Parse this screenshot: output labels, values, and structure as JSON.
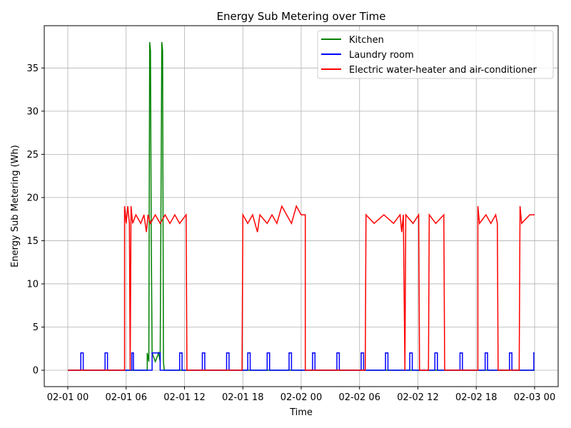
{
  "chart_data": {
    "type": "line",
    "title": "Energy Sub Metering over Time",
    "xlabel": "Time",
    "ylabel": "Energy Sub Metering (Wh)",
    "xlim": [
      "2007-02-01 00:00",
      "2007-02-03 00:00"
    ],
    "ylim": [
      -1.9,
      39.9
    ],
    "x_ticks": [
      "02-01 00",
      "02-01 06",
      "02-01 12",
      "02-01 18",
      "02-02 00",
      "02-02 06",
      "02-02 12",
      "02-02 18",
      "02-03 00"
    ],
    "y_ticks": [
      0,
      5,
      10,
      15,
      20,
      25,
      30,
      35
    ],
    "grid": true,
    "legend_position": "top-right",
    "series": [
      {
        "name": "Kitchen",
        "color": "#008000",
        "points": [
          [
            "02-01 00:00",
            0
          ],
          [
            "02-01 08:10",
            0
          ],
          [
            "02-01 08:10",
            2
          ],
          [
            "02-01 08:20",
            1
          ],
          [
            "02-01 08:25",
            38
          ],
          [
            "02-01 08:30",
            37
          ],
          [
            "02-01 08:35",
            16
          ],
          [
            "02-01 08:40",
            2
          ],
          [
            "02-01 09:00",
            1
          ],
          [
            "02-01 09:20",
            2
          ],
          [
            "02-01 09:30",
            1
          ],
          [
            "02-01 09:40",
            38
          ],
          [
            "02-01 09:45",
            37
          ],
          [
            "02-01 09:50",
            1
          ],
          [
            "02-01 09:55",
            0
          ],
          [
            "02-03 00:00",
            0
          ]
        ]
      },
      {
        "name": "Laundry room",
        "color": "#0000ff",
        "points": [
          [
            "02-01 00:00",
            0
          ],
          [
            "02-01 01:20",
            0
          ],
          [
            "02-01 01:20",
            2
          ],
          [
            "02-01 01:35",
            2
          ],
          [
            "02-01 01:35",
            0
          ],
          [
            "02-01 03:50",
            0
          ],
          [
            "02-01 03:50",
            2
          ],
          [
            "02-01 04:05",
            2
          ],
          [
            "02-01 04:05",
            0
          ],
          [
            "02-01 06:35",
            0
          ],
          [
            "02-01 06:35",
            2
          ],
          [
            "02-01 06:45",
            2
          ],
          [
            "02-01 06:45",
            0
          ],
          [
            "02-01 08:40",
            0
          ],
          [
            "02-01 08:40",
            2
          ],
          [
            "02-01 09:30",
            2
          ],
          [
            "02-01 09:30",
            0
          ],
          [
            "02-01 11:30",
            0
          ],
          [
            "02-01 11:30",
            2
          ],
          [
            "02-01 11:45",
            2
          ],
          [
            "02-01 11:45",
            0
          ],
          [
            "02-01 13:50",
            0
          ],
          [
            "02-01 13:50",
            2
          ],
          [
            "02-01 14:05",
            2
          ],
          [
            "02-01 14:05",
            0
          ],
          [
            "02-01 16:20",
            0
          ],
          [
            "02-01 16:20",
            2
          ],
          [
            "02-01 16:35",
            2
          ],
          [
            "02-01 16:35",
            0
          ],
          [
            "02-01 18:30",
            0
          ],
          [
            "02-01 18:30",
            2
          ],
          [
            "02-01 18:45",
            2
          ],
          [
            "02-01 18:45",
            0
          ],
          [
            "02-01 20:30",
            0
          ],
          [
            "02-01 20:30",
            2
          ],
          [
            "02-01 20:45",
            2
          ],
          [
            "02-01 20:45",
            0
          ],
          [
            "02-01 22:45",
            0
          ],
          [
            "02-01 22:45",
            2
          ],
          [
            "02-01 23:00",
            2
          ],
          [
            "02-01 23:00",
            0
          ],
          [
            "02-02 01:10",
            0
          ],
          [
            "02-02 01:10",
            2
          ],
          [
            "02-02 01:25",
            2
          ],
          [
            "02-02 01:25",
            0
          ],
          [
            "02-02 03:40",
            0
          ],
          [
            "02-02 03:40",
            2
          ],
          [
            "02-02 03:55",
            2
          ],
          [
            "02-02 03:55",
            0
          ],
          [
            "02-02 06:10",
            0
          ],
          [
            "02-02 06:10",
            2
          ],
          [
            "02-02 06:25",
            2
          ],
          [
            "02-02 06:25",
            0
          ],
          [
            "02-02 08:40",
            0
          ],
          [
            "02-02 08:40",
            2
          ],
          [
            "02-02 08:55",
            2
          ],
          [
            "02-02 08:55",
            0
          ],
          [
            "02-02 11:10",
            0
          ],
          [
            "02-02 11:10",
            2
          ],
          [
            "02-02 11:25",
            2
          ],
          [
            "02-02 11:25",
            0
          ],
          [
            "02-02 13:45",
            0
          ],
          [
            "02-02 13:45",
            2
          ],
          [
            "02-02 14:00",
            2
          ],
          [
            "02-02 14:00",
            0
          ],
          [
            "02-02 16:20",
            0
          ],
          [
            "02-02 16:20",
            2
          ],
          [
            "02-02 16:35",
            2
          ],
          [
            "02-02 16:35",
            0
          ],
          [
            "02-02 18:55",
            0
          ],
          [
            "02-02 18:55",
            2
          ],
          [
            "02-02 19:10",
            2
          ],
          [
            "02-02 19:10",
            0
          ],
          [
            "02-02 21:25",
            0
          ],
          [
            "02-02 21:25",
            2
          ],
          [
            "02-02 21:40",
            2
          ],
          [
            "02-02 21:40",
            0
          ],
          [
            "02-02 23:55",
            0
          ],
          [
            "02-02 23:55",
            2
          ],
          [
            "02-03 00:00",
            2
          ]
        ]
      },
      {
        "name": "Electric water-heater and air-conditioner",
        "color": "#ff0000",
        "points": [
          [
            "02-01 00:00",
            0
          ],
          [
            "02-01 05:50",
            0
          ],
          [
            "02-01 05:50",
            19
          ],
          [
            "02-01 06:00",
            17
          ],
          [
            "02-01 06:10",
            19
          ],
          [
            "02-01 06:20",
            17
          ],
          [
            "02-01 06:25",
            0
          ],
          [
            "02-01 06:30",
            19
          ],
          [
            "02-01 06:40",
            17
          ],
          [
            "02-01 07:00",
            18
          ],
          [
            "02-01 07:30",
            17
          ],
          [
            "02-01 07:50",
            18
          ],
          [
            "02-01 08:05",
            16
          ],
          [
            "02-01 08:15",
            18
          ],
          [
            "02-01 08:30",
            17
          ],
          [
            "02-01 09:00",
            18
          ],
          [
            "02-01 09:30",
            17
          ],
          [
            "02-01 10:00",
            18
          ],
          [
            "02-01 10:30",
            17
          ],
          [
            "02-01 11:00",
            18
          ],
          [
            "02-01 11:30",
            17
          ],
          [
            "02-01 12:10",
            18
          ],
          [
            "02-01 12:15",
            0
          ],
          [
            "02-01 17:55",
            0
          ],
          [
            "02-01 18:00",
            18
          ],
          [
            "02-01 18:30",
            17
          ],
          [
            "02-01 19:00",
            18
          ],
          [
            "02-01 19:30",
            16
          ],
          [
            "02-01 19:45",
            18
          ],
          [
            "02-01 20:30",
            17
          ],
          [
            "02-01 21:00",
            18
          ],
          [
            "02-01 21:30",
            17
          ],
          [
            "02-01 22:00",
            19
          ],
          [
            "02-01 22:30",
            18
          ],
          [
            "02-01 23:00",
            17
          ],
          [
            "02-01 23:30",
            19
          ],
          [
            "02-02 00:00",
            18
          ],
          [
            "02-02 00:25",
            18
          ],
          [
            "02-02 00:25",
            0
          ],
          [
            "02-02 06:35",
            0
          ],
          [
            "02-02 06:40",
            18
          ],
          [
            "02-02 07:30",
            17
          ],
          [
            "02-02 08:30",
            18
          ],
          [
            "02-02 09:30",
            17
          ],
          [
            "02-02 10:10",
            18
          ],
          [
            "02-02 10:20",
            16
          ],
          [
            "02-02 10:30",
            18
          ],
          [
            "02-02 10:40",
            0
          ],
          [
            "02-02 10:45",
            18
          ],
          [
            "02-02 11:30",
            17
          ],
          [
            "02-02 12:05",
            18
          ],
          [
            "02-02 12:10",
            0
          ],
          [
            "02-02 13:05",
            0
          ],
          [
            "02-02 13:10",
            18
          ],
          [
            "02-02 13:50",
            17
          ],
          [
            "02-02 14:40",
            18
          ],
          [
            "02-02 14:45",
            0
          ],
          [
            "02-02 18:10",
            0
          ],
          [
            "02-02 18:10",
            19
          ],
          [
            "02-02 18:20",
            17
          ],
          [
            "02-02 19:00",
            18
          ],
          [
            "02-02 19:30",
            17
          ],
          [
            "02-02 20:00",
            18
          ],
          [
            "02-02 20:10",
            17
          ],
          [
            "02-02 20:15",
            0
          ],
          [
            "02-02 22:25",
            0
          ],
          [
            "02-02 22:30",
            19
          ],
          [
            "02-02 22:40",
            17
          ],
          [
            "02-02 23:30",
            18
          ],
          [
            "02-03 00:00",
            18
          ]
        ]
      }
    ]
  }
}
